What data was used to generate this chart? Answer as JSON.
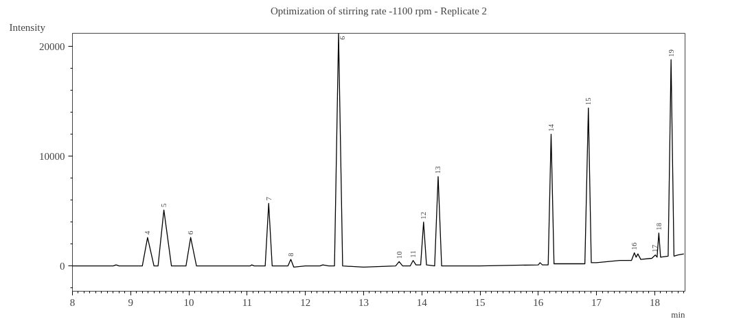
{
  "chart_data": {
    "type": "line",
    "title": "Optimization of stirring rate -1100 rpm - Replicate 2",
    "xlabel": "min",
    "ylabel": "Intensity",
    "x": [
      8,
      8.7,
      8.75,
      8.8,
      9.2,
      9.29,
      9.4,
      9.47,
      9.57,
      9.7,
      9.95,
      10.03,
      10.13,
      10.5,
      11.05,
      11.08,
      11.12,
      11.31,
      11.37,
      11.43,
      11.7,
      11.75,
      11.8,
      12.0,
      12.25,
      12.3,
      12.4,
      12.5,
      12.57,
      12.64,
      13.0,
      13.55,
      13.61,
      13.67,
      13.8,
      13.85,
      13.9,
      13.98,
      14.03,
      14.08,
      14.22,
      14.28,
      14.34,
      15.0,
      16.0,
      16.03,
      16.07,
      16.17,
      16.22,
      16.27,
      16.8,
      16.86,
      16.91,
      17.0,
      17.4,
      17.6,
      17.65,
      17.68,
      17.71,
      17.76,
      17.95,
      18.01,
      18.04,
      18.07,
      18.1,
      18.23,
      18.28,
      18.33,
      18.4,
      18.5
    ],
    "series": [
      {
        "color": "#000000",
        "values": [
          0,
          0,
          100,
          0,
          0,
          2600,
          0,
          0,
          5100,
          0,
          0,
          2600,
          0,
          0,
          0,
          100,
          0,
          0,
          5700,
          0,
          0,
          600,
          -100,
          0,
          0,
          100,
          0,
          0,
          21200,
          0,
          -100,
          0,
          400,
          0,
          0,
          500,
          100,
          100,
          4000,
          100,
          0,
          8150,
          0,
          0,
          100,
          300,
          100,
          100,
          12000,
          200,
          200,
          14400,
          300,
          300,
          500,
          500,
          1200,
          800,
          1100,
          600,
          700,
          1000,
          800,
          3000,
          800,
          900,
          18800,
          900,
          1000,
          1100
        ]
      }
    ],
    "annotations": [
      {
        "text": "4",
        "x": 9.29,
        "y": 2600
      },
      {
        "text": "5",
        "x": 9.57,
        "y": 5100
      },
      {
        "text": "6",
        "x": 10.03,
        "y": 2600
      },
      {
        "text": "7",
        "x": 11.37,
        "y": 5700
      },
      {
        "text": "8",
        "x": 11.75,
        "y": 600
      },
      "9",
      {
        "text": "10",
        "x": 13.61,
        "y": 400
      },
      {
        "text": "11",
        "x": 13.85,
        "y": 500
      },
      {
        "text": "12",
        "x": 14.03,
        "y": 4000
      },
      {
        "text": "13",
        "x": 14.28,
        "y": 8150
      },
      {
        "text": "14",
        "x": 16.22,
        "y": 12000
      },
      {
        "text": "15",
        "x": 16.86,
        "y": 14400
      },
      {
        "text": "16",
        "x": 17.65,
        "y": 1200
      },
      {
        "text": "17",
        "x": 18.0,
        "y": 1000
      },
      {
        "text": "18",
        "x": 18.07,
        "y": 3000
      },
      {
        "text": "19",
        "x": 18.28,
        "y": 18800
      }
    ],
    "xlim": [
      8,
      18.52
    ],
    "ylim": [
      -2300,
      21200
    ],
    "xticks": [
      8,
      9,
      10,
      11,
      12,
      13,
      14,
      15,
      16,
      17,
      18
    ],
    "yticks": [
      0,
      10000,
      20000
    ],
    "grid": false,
    "marker": "none",
    "line_style": "solid"
  }
}
